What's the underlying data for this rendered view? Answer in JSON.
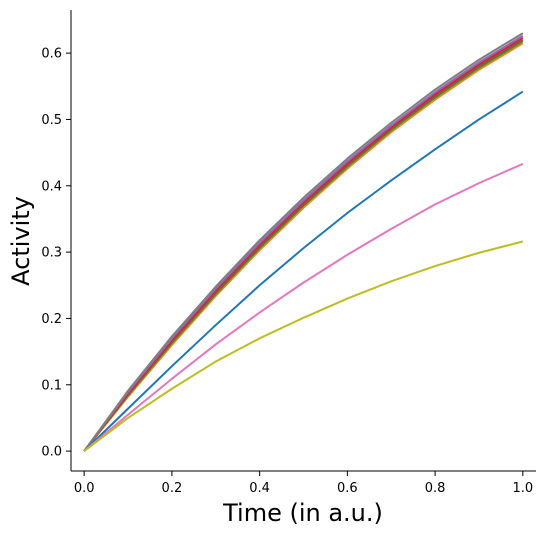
{
  "chart_data": {
    "type": "line",
    "title": "",
    "xlabel": "Time (in a.u.)",
    "ylabel": "Activity",
    "xlim": [
      -0.03,
      1.03
    ],
    "ylim": [
      -0.03,
      0.665
    ],
    "x_ticks": [
      0.0,
      0.2,
      0.4,
      0.6,
      0.8,
      1.0
    ],
    "y_ticks": [
      0.0,
      0.1,
      0.2,
      0.3,
      0.4,
      0.5,
      0.6
    ],
    "x_tick_labels": [
      "0.0",
      "0.2",
      "0.4",
      "0.6",
      "0.8",
      "1.0"
    ],
    "y_tick_labels": [
      "0.0",
      "0.1",
      "0.2",
      "0.3",
      "0.4",
      "0.5",
      "0.6"
    ],
    "grid": false,
    "legend": "none",
    "x": [
      0.0,
      0.1,
      0.2,
      0.3,
      0.4,
      0.5,
      0.6,
      0.7,
      0.8,
      0.9,
      1.0
    ],
    "series": [
      {
        "color": "#ff7f0e",
        "values": [
          0.0,
          0.082,
          0.16,
          0.234,
          0.303,
          0.367,
          0.426,
          0.481,
          0.53,
          0.575,
          0.615
        ]
      },
      {
        "color": "#2ca02c",
        "values": [
          0.0,
          0.084,
          0.163,
          0.237,
          0.306,
          0.37,
          0.429,
          0.484,
          0.533,
          0.578,
          0.618
        ]
      },
      {
        "color": "#8c564b",
        "values": [
          0.0,
          0.085,
          0.165,
          0.239,
          0.308,
          0.372,
          0.431,
          0.486,
          0.535,
          0.58,
          0.62
        ]
      },
      {
        "color": "#d62728",
        "values": [
          0.0,
          0.087,
          0.167,
          0.242,
          0.311,
          0.375,
          0.434,
          0.488,
          0.538,
          0.583,
          0.623
        ]
      },
      {
        "color": "#9467bd",
        "values": [
          0.0,
          0.089,
          0.17,
          0.245,
          0.314,
          0.378,
          0.437,
          0.491,
          0.541,
          0.586,
          0.626
        ]
      },
      {
        "color": "#7f7f7f",
        "values": [
          0.0,
          0.091,
          0.173,
          0.248,
          0.318,
          0.382,
          0.441,
          0.495,
          0.545,
          0.59,
          0.63
        ]
      },
      {
        "color": "#1f77b4",
        "values": [
          0.0,
          0.064,
          0.128,
          0.19,
          0.25,
          0.306,
          0.359,
          0.408,
          0.455,
          0.5,
          0.542
        ]
      },
      {
        "color": "#e377c2",
        "values": [
          0.0,
          0.055,
          0.109,
          0.161,
          0.209,
          0.254,
          0.296,
          0.335,
          0.372,
          0.404,
          0.433
        ]
      },
      {
        "color": "#bcbd22",
        "values": [
          0.0,
          0.05,
          0.094,
          0.135,
          0.17,
          0.201,
          0.23,
          0.256,
          0.279,
          0.299,
          0.316
        ]
      }
    ]
  }
}
